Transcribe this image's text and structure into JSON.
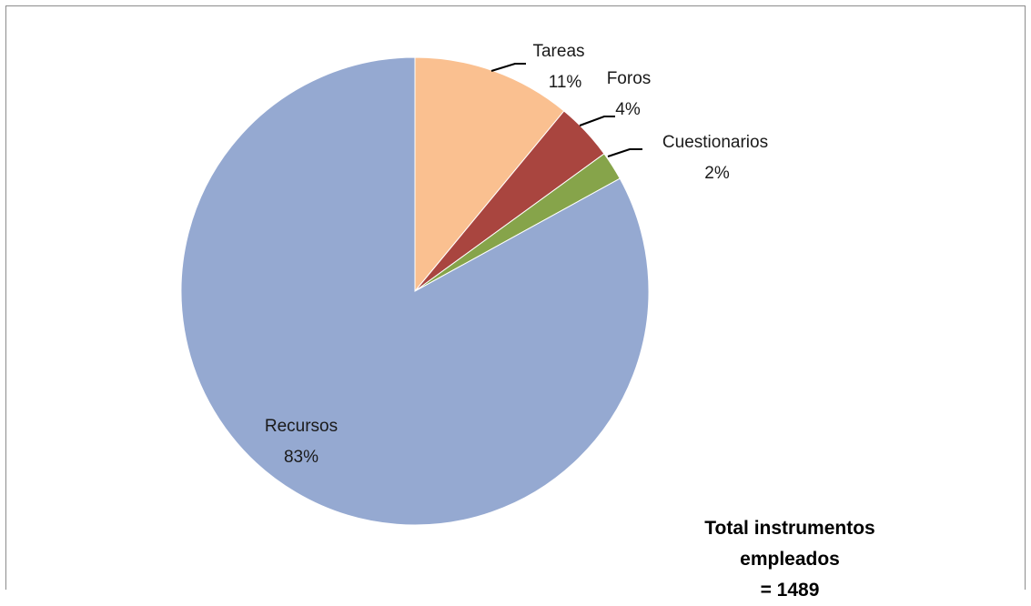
{
  "chart_data": {
    "type": "pie",
    "title": "",
    "slices": [
      {
        "name": "Tareas",
        "value": 11,
        "value_label": "11%",
        "color": "#FAC090"
      },
      {
        "name": "Foros",
        "value": 4,
        "value_label": "4%",
        "color": "#A9453F"
      },
      {
        "name": "Cuestionarios",
        "value": 2,
        "value_label": "2%",
        "color": "#86A44A"
      },
      {
        "name": "Recursos",
        "value": 83,
        "value_label": "83%",
        "color": "#95A9D1"
      }
    ],
    "start_angle": "12 o'clock",
    "direction": "clockwise",
    "legend": "none"
  },
  "annotation": {
    "line1": "Total instrumentos",
    "line2": "empleados",
    "line3": "= 1489"
  }
}
